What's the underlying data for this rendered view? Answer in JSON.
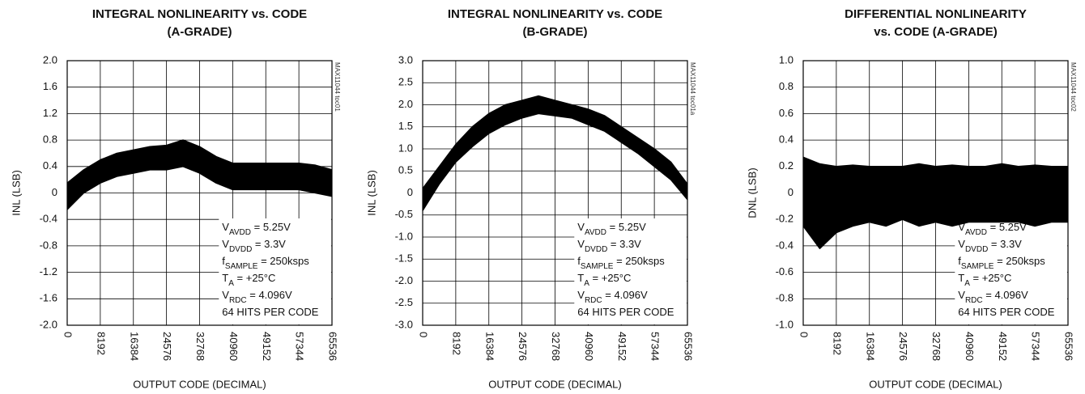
{
  "chart_data": [
    {
      "type": "line",
      "title": [
        "INTEGRAL NONLINEARITY vs. CODE",
        "(A-GRADE)"
      ],
      "xlabel": "OUTPUT CODE (DECIMAL)",
      "ylabel": "INL (LSB)",
      "note": "MAX11044 toc01",
      "x": [
        0,
        4096,
        8192,
        12288,
        16384,
        20480,
        24576,
        28672,
        32768,
        36864,
        40960,
        45056,
        49152,
        53248,
        57344,
        61440,
        65536
      ],
      "series": [
        {
          "color": "#000000",
          "values": [
            0.15,
            0.35,
            0.5,
            0.6,
            0.65,
            0.7,
            0.72,
            0.8,
            0.7,
            0.55,
            0.45,
            0.45,
            0.45,
            0.45,
            0.45,
            0.42,
            0.35
          ]
        },
        {
          "color": "#000000",
          "values": [
            -0.25,
            0.0,
            0.15,
            0.25,
            0.3,
            0.35,
            0.35,
            0.4,
            0.3,
            0.15,
            0.05,
            0.05,
            0.05,
            0.05,
            0.05,
            0.0,
            -0.05
          ]
        }
      ],
      "xlim": [
        0,
        65536
      ],
      "xticks": [
        0,
        8192,
        16384,
        24576,
        32768,
        40960,
        49152,
        57344,
        65536
      ],
      "ylim": [
        -2,
        2
      ],
      "yticks": [
        {
          "value": -2,
          "label": "-2.0"
        },
        -1.6,
        -1.2,
        -0.8,
        -0.4,
        0,
        0.4,
        0.8,
        1.2,
        1.6,
        {
          "value": 2,
          "label": "2.0"
        }
      ],
      "grid": true,
      "annotations": [
        {
          "base": "V",
          "sub": "AVDD",
          "tail": " = 5.25V"
        },
        {
          "base": "V",
          "sub": "DVDD",
          "tail": " = 3.3V"
        },
        {
          "base": "f",
          "sub": "SAMPLE",
          "tail": " = 250ksps"
        },
        {
          "base": "T",
          "sub": "A",
          "tail": " = +25°C"
        },
        {
          "base": "V",
          "sub": "RDC",
          "tail": " = 4.096V"
        },
        {
          "base": "64 HITS PER CODE"
        }
      ]
    },
    {
      "type": "line",
      "title": [
        "INTEGRAL NONLINEARITY vs. CODE",
        "(B-GRADE)"
      ],
      "xlabel": "OUTPUT CODE (DECIMAL)",
      "ylabel": "INL (LSB)",
      "note": "MAX11044 toc01a",
      "x": [
        0,
        4096,
        8192,
        12288,
        16384,
        20480,
        24576,
        28672,
        32768,
        36864,
        40960,
        45056,
        49152,
        53248,
        57344,
        61440,
        65536
      ],
      "series": [
        {
          "color": "#000000",
          "values": [
            0.1,
            0.6,
            1.1,
            1.5,
            1.8,
            2.0,
            2.1,
            2.2,
            2.1,
            2.0,
            1.9,
            1.75,
            1.5,
            1.25,
            1.0,
            0.7,
            0.2
          ]
        },
        {
          "color": "#000000",
          "values": [
            -0.4,
            0.2,
            0.7,
            1.05,
            1.35,
            1.55,
            1.7,
            1.8,
            1.75,
            1.7,
            1.55,
            1.4,
            1.15,
            0.9,
            0.6,
            0.3,
            -0.15
          ]
        }
      ],
      "xlim": [
        0,
        65536
      ],
      "xticks": [
        0,
        8192,
        16384,
        24576,
        32768,
        40960,
        49152,
        57344,
        65536
      ],
      "ylim": [
        -3,
        3
      ],
      "yticks": [
        {
          "value": -3,
          "label": "-3.0"
        },
        -2.5,
        {
          "value": -2,
          "label": "-2.0"
        },
        -1.5,
        {
          "value": -1,
          "label": "-1.0"
        },
        -0.5,
        0,
        0.5,
        {
          "value": 1,
          "label": "1.0"
        },
        1.5,
        {
          "value": 2,
          "label": "2.0"
        },
        2.5,
        {
          "value": 3,
          "label": "3.0"
        }
      ],
      "grid": true,
      "annotations": [
        {
          "base": "V",
          "sub": "AVDD",
          "tail": " = 5.25V"
        },
        {
          "base": "V",
          "sub": "DVDD",
          "tail": " = 3.3V"
        },
        {
          "base": "f",
          "sub": "SAMPLE",
          "tail": " = 250ksps"
        },
        {
          "base": "T",
          "sub": "A",
          "tail": " = +25°C"
        },
        {
          "base": "V",
          "sub": "RDC",
          "tail": " = 4.096V"
        },
        {
          "base": "64 HITS PER CODE"
        }
      ]
    },
    {
      "type": "line",
      "title": [
        "DIFFERENTIAL NONLINEARITY",
        "vs. CODE (A-GRADE)"
      ],
      "xlabel": "OUTPUT CODE (DECIMAL)",
      "ylabel": "DNL (LSB)",
      "note": "MAX11044 toc02",
      "x": [
        0,
        4096,
        8192,
        12288,
        16384,
        20480,
        24576,
        28672,
        32768,
        36864,
        40960,
        45056,
        49152,
        53248,
        57344,
        61440,
        65536
      ],
      "series": [
        {
          "color": "#000000",
          "values": [
            0.27,
            0.22,
            0.2,
            0.21,
            0.2,
            0.2,
            0.2,
            0.22,
            0.2,
            0.21,
            0.2,
            0.2,
            0.22,
            0.2,
            0.21,
            0.2,
            0.2
          ]
        },
        {
          "color": "#000000",
          "values": [
            -0.25,
            -0.42,
            -0.3,
            -0.25,
            -0.22,
            -0.25,
            -0.2,
            -0.25,
            -0.22,
            -0.25,
            -0.22,
            -0.22,
            -0.22,
            -0.22,
            -0.25,
            -0.22,
            -0.22
          ]
        }
      ],
      "xlim": [
        0,
        65536
      ],
      "xticks": [
        0,
        8192,
        16384,
        24576,
        32768,
        40960,
        49152,
        57344,
        65536
      ],
      "ylim": [
        -1,
        1
      ],
      "yticks": [
        {
          "value": -1,
          "label": "-1.0"
        },
        -0.8,
        -0.6,
        -0.4,
        -0.2,
        0,
        0.2,
        0.4,
        0.6,
        0.8,
        {
          "value": 1,
          "label": "1.0"
        }
      ],
      "grid": true,
      "annotations": [
        {
          "base": "V",
          "sub": "AVDD",
          "tail": " = 5.25V"
        },
        {
          "base": "V",
          "sub": "DVDD",
          "tail": " = 3.3V"
        },
        {
          "base": "f",
          "sub": "SAMPLE",
          "tail": " = 250ksps"
        },
        {
          "base": "T",
          "sub": "A",
          "tail": " = +25°C"
        },
        {
          "base": "V",
          "sub": "RDC",
          "tail": " = 4.096V"
        },
        {
          "base": "64 HITS PER CODE"
        }
      ]
    }
  ]
}
